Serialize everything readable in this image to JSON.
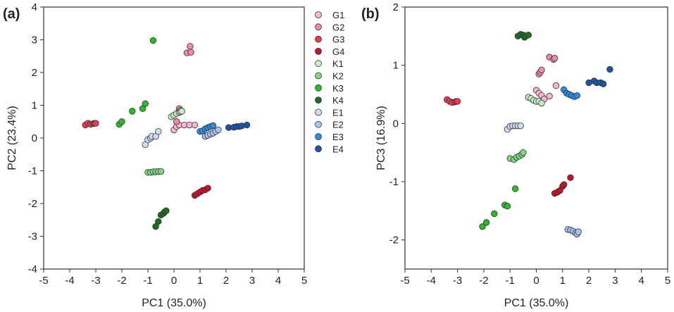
{
  "chart_data": [
    {
      "type": "scatter",
      "panel_label": "(a)",
      "xlabel": "PC1 (35.0%)",
      "ylabel": "PC2 (23.4%)",
      "xlim": [
        -5,
        5
      ],
      "ylim": [
        -4,
        4
      ],
      "xticks": [
        "-5",
        "-4",
        "-3",
        "-2",
        "-1",
        "0",
        "1",
        "2",
        "3",
        "4",
        "5"
      ],
      "yticks": [
        "-4",
        "-3",
        "-2",
        "-1",
        "0",
        "1",
        "2",
        "3",
        "4"
      ],
      "legend": "right",
      "series": [
        {
          "name": "G1",
          "color": "#f4b8c8",
          "points": [
            [
              0.0,
              0.25
            ],
            [
              0.1,
              0.35
            ],
            [
              0.2,
              0.4
            ],
            [
              0.4,
              0.4
            ],
            [
              0.6,
              0.4
            ],
            [
              0.8,
              0.4
            ]
          ]
        },
        {
          "name": "G2",
          "color": "#ef8ca3",
          "points": [
            [
              0.2,
              0.9
            ],
            [
              0.25,
              0.85
            ],
            [
              0.5,
              2.6
            ],
            [
              0.65,
              2.62
            ],
            [
              0.62,
              2.8
            ],
            [
              0.1,
              0.5
            ]
          ]
        },
        {
          "name": "G3",
          "color": "#e63c52",
          "points": [
            [
              -3.4,
              0.4
            ],
            [
              -3.3,
              0.45
            ],
            [
              -3.2,
              0.42
            ],
            [
              -3.1,
              0.44
            ],
            [
              -3.05,
              0.45
            ],
            [
              -3.0,
              0.45
            ]
          ]
        },
        {
          "name": "G4",
          "color": "#c0142d",
          "points": [
            [
              0.8,
              -1.75
            ],
            [
              0.9,
              -1.7
            ],
            [
              1.0,
              -1.65
            ],
            [
              1.1,
              -1.6
            ],
            [
              1.2,
              -1.58
            ],
            [
              1.3,
              -1.53
            ]
          ]
        },
        {
          "name": "K1",
          "color": "#c6ecc6",
          "points": [
            [
              -0.1,
              0.65
            ],
            [
              0.0,
              0.7
            ],
            [
              0.1,
              0.75
            ],
            [
              0.2,
              0.78
            ],
            [
              0.25,
              0.8
            ],
            [
              0.3,
              0.82
            ]
          ]
        },
        {
          "name": "K2",
          "color": "#80d880",
          "points": [
            [
              -1.0,
              -1.05
            ],
            [
              -0.9,
              -1.05
            ],
            [
              -0.8,
              -1.03
            ],
            [
              -0.7,
              -1.03
            ],
            [
              -0.6,
              -1.02
            ],
            [
              -0.5,
              -1.02
            ]
          ]
        },
        {
          "name": "K3",
          "color": "#2db82d",
          "points": [
            [
              -2.1,
              0.42
            ],
            [
              -2.0,
              0.5
            ],
            [
              -1.6,
              0.82
            ],
            [
              -1.2,
              0.9
            ],
            [
              -1.1,
              1.05
            ],
            [
              -0.8,
              2.98
            ]
          ]
        },
        {
          "name": "K4",
          "color": "#1f6e1f",
          "points": [
            [
              -0.7,
              -2.7
            ],
            [
              -0.6,
              -2.55
            ],
            [
              -0.5,
              -2.35
            ],
            [
              -0.4,
              -2.3
            ],
            [
              -0.35,
              -2.25
            ],
            [
              -0.3,
              -2.22
            ]
          ]
        },
        {
          "name": "E1",
          "color": "#cfdcf6",
          "points": [
            [
              -1.1,
              -0.2
            ],
            [
              -1.0,
              -0.05
            ],
            [
              -0.9,
              0.0
            ],
            [
              -0.85,
              0.05
            ],
            [
              -0.7,
              0.05
            ],
            [
              -0.6,
              0.2
            ]
          ]
        },
        {
          "name": "E2",
          "color": "#a6c4ef",
          "points": [
            [
              1.2,
              0.05
            ],
            [
              1.3,
              0.08
            ],
            [
              1.4,
              0.12
            ],
            [
              1.5,
              0.15
            ],
            [
              1.6,
              0.2
            ],
            [
              1.7,
              0.25
            ]
          ]
        },
        {
          "name": "E3",
          "color": "#2d8ce0",
          "points": [
            [
              1.0,
              0.2
            ],
            [
              1.1,
              0.22
            ],
            [
              1.2,
              0.28
            ],
            [
              1.3,
              0.32
            ],
            [
              1.4,
              0.35
            ],
            [
              1.5,
              0.38
            ]
          ]
        },
        {
          "name": "E4",
          "color": "#1d55a3",
          "points": [
            [
              2.1,
              0.32
            ],
            [
              2.3,
              0.33
            ],
            [
              2.4,
              0.35
            ],
            [
              2.5,
              0.35
            ],
            [
              2.6,
              0.37
            ],
            [
              2.8,
              0.4
            ]
          ]
        }
      ]
    },
    {
      "type": "scatter",
      "panel_label": "(b)",
      "xlabel": "PC1 (35.0%)",
      "ylabel": "PC3 (16.9%)",
      "xlim": [
        -5,
        5
      ],
      "ylim": [
        -2.5,
        2
      ],
      "xticks": [
        "-5",
        "-4",
        "-3",
        "-2",
        "-1",
        "0",
        "1",
        "2",
        "3",
        "4",
        "5"
      ],
      "yticks": [
        "-2",
        "-1",
        "0",
        "1",
        "2"
      ],
      "series": [
        {
          "name": "G1",
          "color": "#f4b8c8",
          "points": [
            [
              0.0,
              0.57
            ],
            [
              0.1,
              0.52
            ],
            [
              0.2,
              0.48
            ],
            [
              0.3,
              0.42
            ],
            [
              0.5,
              0.47
            ],
            [
              0.75,
              0.65
            ]
          ]
        },
        {
          "name": "G2",
          "color": "#ef8ca3",
          "points": [
            [
              0.5,
              1.14
            ],
            [
              0.65,
              1.1
            ],
            [
              0.7,
              1.12
            ],
            [
              0.1,
              0.85
            ],
            [
              0.15,
              0.88
            ],
            [
              0.2,
              0.92
            ]
          ]
        },
        {
          "name": "G3",
          "color": "#e63c52",
          "points": [
            [
              -3.4,
              0.41
            ],
            [
              -3.3,
              0.38
            ],
            [
              -3.2,
              0.36
            ],
            [
              -3.1,
              0.37
            ],
            [
              -3.05,
              0.38
            ],
            [
              -3.0,
              0.38
            ]
          ]
        },
        {
          "name": "G4",
          "color": "#c0142d",
          "points": [
            [
              0.7,
              -1.2
            ],
            [
              0.8,
              -1.18
            ],
            [
              0.9,
              -1.15
            ],
            [
              1.0,
              -1.08
            ],
            [
              1.05,
              -1.05
            ],
            [
              1.3,
              -0.93
            ]
          ]
        },
        {
          "name": "K1",
          "color": "#c6ecc6",
          "points": [
            [
              -0.3,
              0.45
            ],
            [
              -0.2,
              0.43
            ],
            [
              -0.1,
              0.4
            ],
            [
              0.0,
              0.38
            ],
            [
              0.1,
              0.38
            ],
            [
              0.2,
              0.35
            ]
          ]
        },
        {
          "name": "K2",
          "color": "#80d880",
          "points": [
            [
              -1.0,
              -0.6
            ],
            [
              -0.85,
              -0.62
            ],
            [
              -0.75,
              -0.58
            ],
            [
              -0.65,
              -0.56
            ],
            [
              -0.55,
              -0.53
            ],
            [
              -0.5,
              -0.5
            ]
          ]
        },
        {
          "name": "K3",
          "color": "#2db82d",
          "points": [
            [
              -2.05,
              -1.77
            ],
            [
              -1.9,
              -1.7
            ],
            [
              -1.6,
              -1.55
            ],
            [
              -1.2,
              -1.4
            ],
            [
              -1.1,
              -1.42
            ],
            [
              -0.8,
              -1.12
            ]
          ]
        },
        {
          "name": "K4",
          "color": "#1f6e1f",
          "points": [
            [
              -0.7,
              1.5
            ],
            [
              -0.6,
              1.53
            ],
            [
              -0.5,
              1.52
            ],
            [
              -0.45,
              1.48
            ],
            [
              -0.4,
              1.5
            ],
            [
              -0.3,
              1.52
            ]
          ]
        },
        {
          "name": "E1",
          "color": "#cfdcf6",
          "points": [
            [
              -1.1,
              -0.1
            ],
            [
              -1.0,
              -0.05
            ],
            [
              -0.9,
              -0.04
            ],
            [
              -0.8,
              -0.04
            ],
            [
              -0.7,
              -0.04
            ],
            [
              -0.6,
              -0.04
            ]
          ]
        },
        {
          "name": "E2",
          "color": "#a6c4ef",
          "points": [
            [
              1.2,
              -1.82
            ],
            [
              1.3,
              -1.83
            ],
            [
              1.4,
              -1.85
            ],
            [
              1.5,
              -1.88
            ],
            [
              1.55,
              -1.9
            ],
            [
              1.6,
              -1.86
            ]
          ]
        },
        {
          "name": "E3",
          "color": "#2d8ce0",
          "points": [
            [
              1.05,
              0.58
            ],
            [
              1.15,
              0.52
            ],
            [
              1.25,
              0.5
            ],
            [
              1.35,
              0.48
            ],
            [
              1.45,
              0.46
            ],
            [
              1.55,
              0.48
            ]
          ]
        },
        {
          "name": "E4",
          "color": "#1d55a3",
          "points": [
            [
              2.0,
              0.7
            ],
            [
              2.2,
              0.73
            ],
            [
              2.3,
              0.7
            ],
            [
              2.45,
              0.7
            ],
            [
              2.55,
              0.68
            ],
            [
              2.8,
              0.93
            ]
          ]
        }
      ]
    }
  ]
}
